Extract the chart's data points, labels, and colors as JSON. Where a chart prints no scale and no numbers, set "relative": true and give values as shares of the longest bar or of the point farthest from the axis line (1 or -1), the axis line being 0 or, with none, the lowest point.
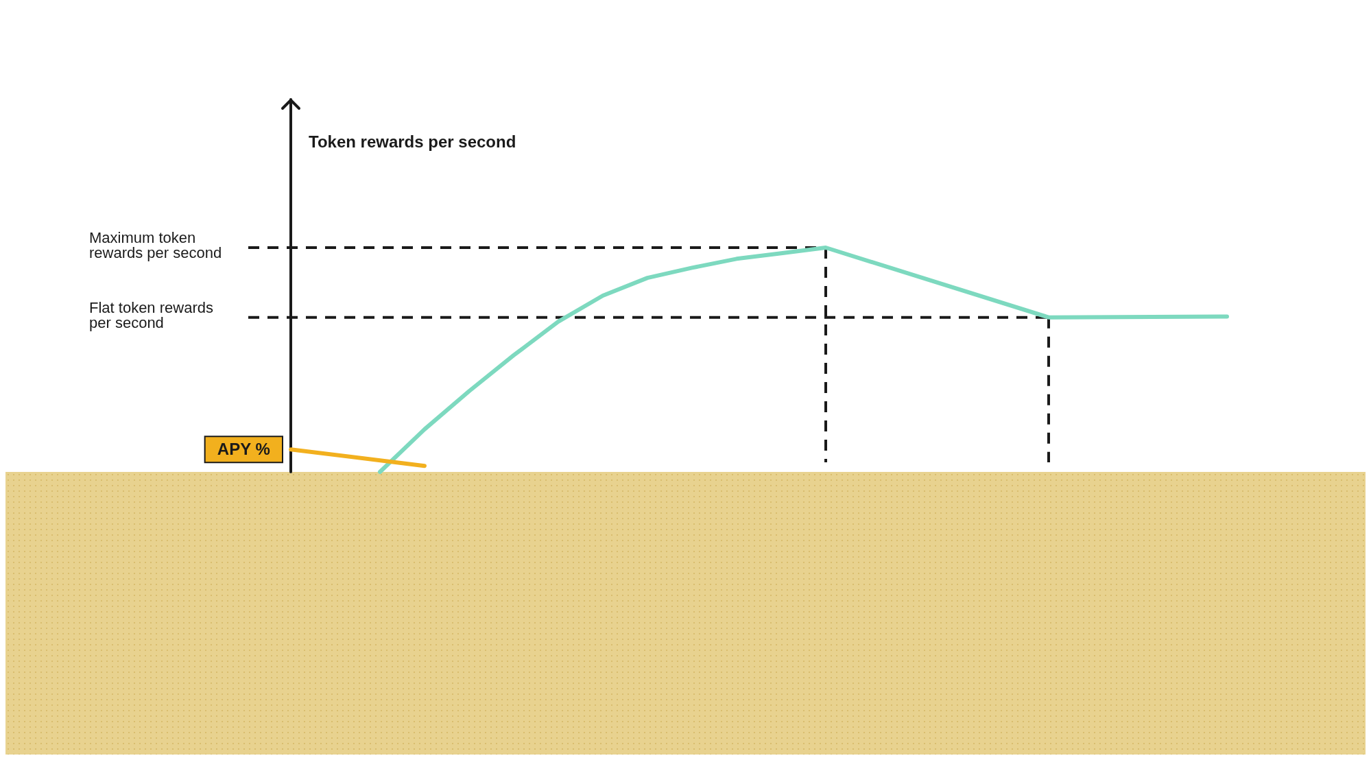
{
  "chart_data": {
    "type": "line",
    "relative": true,
    "annotations": [
      "Token rewards per second"
    ],
    "marker": "none",
    "line_style": "solid",
    "categories": [
      null,
      null,
      null,
      null,
      null,
      null,
      null,
      null,
      null,
      null,
      null,
      null,
      null,
      null,
      null,
      null,
      null,
      null,
      null,
      null,
      null,
      null
    ],
    "series": [
      {
        "name": "APY %",
        "color": "#f2b01e",
        "values": [
          0.1,
          null,
          null,
          0.027,
          null,
          null,
          null,
          null,
          null,
          null,
          null,
          null,
          null,
          null,
          null,
          null,
          null,
          null,
          null,
          null,
          null,
          null
        ]
      },
      {
        "color": "#7dd9bf",
        "values": [
          null,
          null,
          0,
          0.19,
          0.36,
          0.52,
          0.67,
          0.786,
          0.865,
          0.91,
          0.95,
          0.975,
          1,
          null,
          null,
          null,
          null,
          0.689,
          null,
          null,
          null,
          0.693
        ]
      }
    ],
    "ref_lines": [
      {
        "axis": "y",
        "value": 1,
        "label": "Maximum token\nrewards per second",
        "line_style": "dashed",
        "color": "#1a1a1a"
      },
      {
        "axis": "y",
        "value": 0.689,
        "label": "Flat token rewards\nper second",
        "line_style": "dashed",
        "color": "#1a1a1a"
      }
    ]
  }
}
